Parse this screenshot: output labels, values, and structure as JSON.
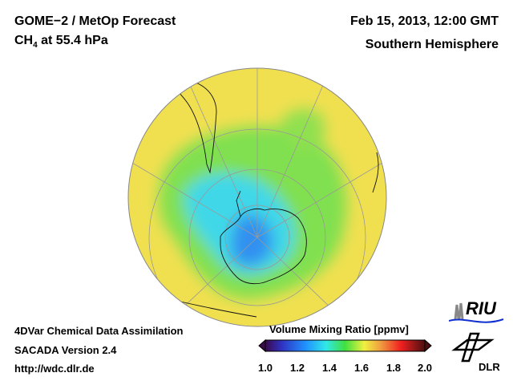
{
  "header": {
    "title": "GOME−2 / MetOp Forecast",
    "species": "CH",
    "species_sub": "4",
    "level": " at 55.4 hPa",
    "date": "Feb 15, 2013, 12:00 GMT",
    "region": "Southern Hemisphere"
  },
  "footer": {
    "line1": "4DVar Chemical Data Assimilation",
    "line2": "SACADA Version 2.4",
    "line3": "http://wdc.dlr.de"
  },
  "colorbar": {
    "title": "Volume Mixing Ratio [ppmv]",
    "ticks": [
      "1.0",
      "1.2",
      "1.4",
      "1.6",
      "1.8",
      "2.0"
    ],
    "range": [
      1.0,
      2.0
    ],
    "colors": [
      "#3a0a4a",
      "#3030c0",
      "#2090ff",
      "#30e8e8",
      "#40e040",
      "#f0f040",
      "#f0a040",
      "#f02020",
      "#4a1010"
    ]
  },
  "logos": {
    "riu": "RIU",
    "dlr": "DLR"
  },
  "map_colors": {
    "background": "#f0e050",
    "ocean_mid": "#80e050",
    "low": "#40d8e8",
    "core": "#3090f0"
  }
}
